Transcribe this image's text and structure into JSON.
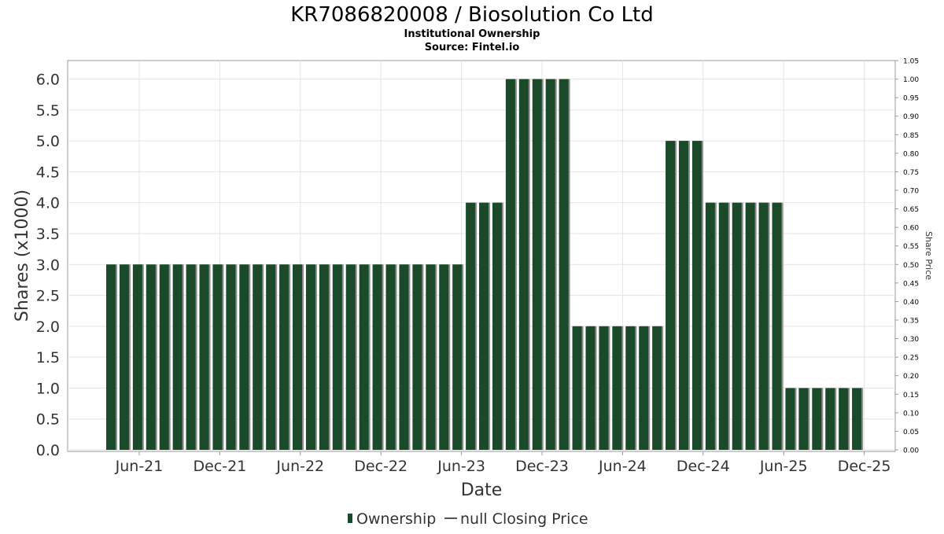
{
  "chart_data": {
    "type": "bar",
    "title": "KR7086820008 / Biosolution Co Ltd",
    "subtitle_1": "Institutional Ownership",
    "subtitle_2": "Source: Fintel.io",
    "xlabel": "Date",
    "ylabel": "Shares (x1000)",
    "y2label": "Share Price",
    "ylim": [
      0,
      6.3
    ],
    "y2lim": [
      0,
      1.05
    ],
    "y_ticks": [
      "0.0",
      "0.5",
      "1.0",
      "1.5",
      "2.0",
      "2.5",
      "3.0",
      "3.5",
      "4.0",
      "4.5",
      "5.0",
      "5.5",
      "6.0"
    ],
    "y2_ticks": [
      "0.00",
      "0.05",
      "0.10",
      "0.15",
      "0.20",
      "0.25",
      "0.30",
      "0.35",
      "0.40",
      "0.45",
      "0.50",
      "0.55",
      "0.60",
      "0.65",
      "0.70",
      "0.75",
      "0.80",
      "0.85",
      "0.90",
      "0.95",
      "1.00",
      "1.05"
    ],
    "x_ticks": [
      "Jun-21",
      "Dec-21",
      "Jun-22",
      "Dec-22",
      "Jun-23",
      "Dec-23",
      "Jun-24",
      "Dec-24",
      "Jun-25",
      "Dec-25"
    ],
    "grid": true,
    "legend_position": "bottom",
    "legend": [
      {
        "label": "Ownership",
        "kind": "bar",
        "color": "#1a4a2a"
      },
      {
        "label": "null Closing Price",
        "kind": "line",
        "color": "#555555"
      }
    ],
    "series": [
      {
        "name": "Ownership",
        "color": "#1a4a2a",
        "values": [
          3,
          3,
          3,
          3,
          3,
          3,
          3,
          3,
          3,
          3,
          3,
          3,
          3,
          3,
          3,
          3,
          3,
          3,
          3,
          3,
          3,
          3,
          3,
          3,
          3,
          3,
          3,
          4,
          4,
          4,
          6,
          6,
          6,
          6,
          6,
          2,
          2,
          2,
          2,
          2,
          2,
          2,
          5,
          5,
          5,
          4,
          4,
          4,
          4,
          4,
          4,
          1,
          1,
          1,
          1,
          1,
          1
        ]
      }
    ]
  }
}
